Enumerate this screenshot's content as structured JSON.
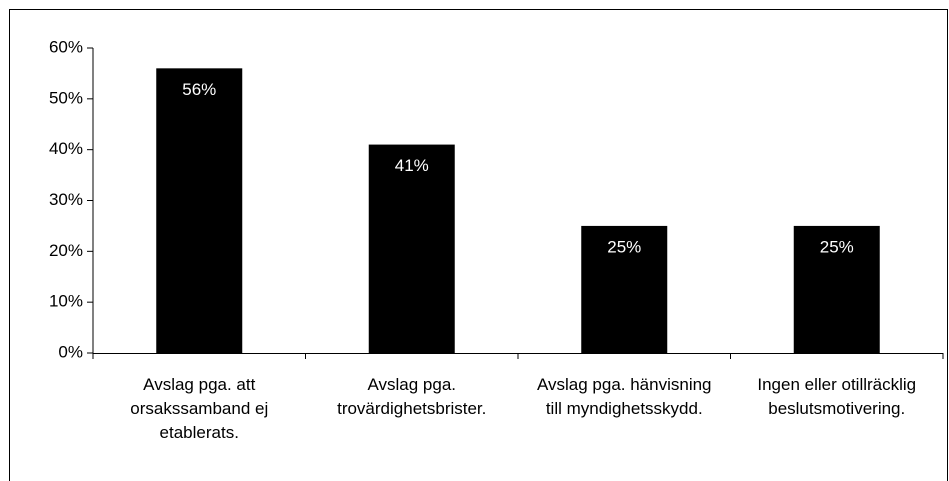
{
  "chart_data": {
    "type": "bar",
    "categories": [
      "Avslag pga. att orsakssamband ej etablerats.",
      "Avslag pga. trovärdighetsbrister.",
      "Avslag pga. hänvisning till myndighetsskydd.",
      "Ingen eller otillräcklig beslutsmotivering."
    ],
    "values": [
      56,
      41,
      25,
      25
    ],
    "value_labels": [
      "56%",
      "41%",
      "25%",
      "25%"
    ],
    "color": "#000000",
    "ylim": [
      0,
      60
    ],
    "yticks": [
      {
        "value": 0,
        "label": "0%"
      },
      {
        "value": 10,
        "label": "10%"
      },
      {
        "value": 20,
        "label": "20%"
      },
      {
        "value": 30,
        "label": "30%"
      },
      {
        "value": 40,
        "label": "40%"
      },
      {
        "value": 50,
        "label": "50%"
      },
      {
        "value": 60,
        "label": "60%"
      }
    ],
    "grid": false
  }
}
